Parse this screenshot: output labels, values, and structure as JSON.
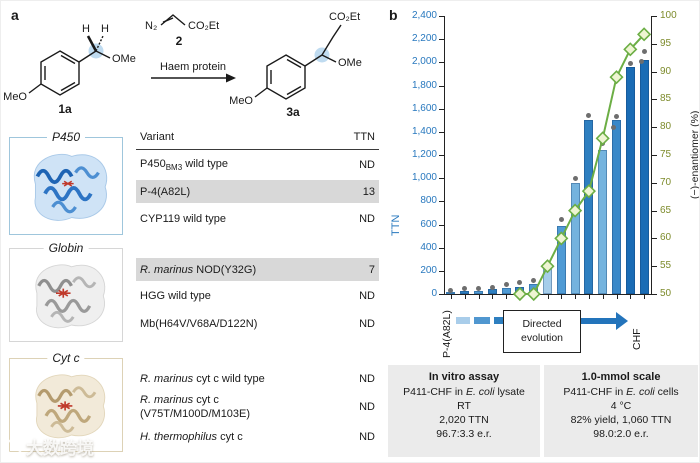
{
  "panel_a": {
    "label": "a",
    "scheme": {
      "mol1": {
        "id": "1a",
        "meo": "MeO",
        "ome": "OMe",
        "h1": "H",
        "h2": "H"
      },
      "reagent": {
        "n2": "N₂",
        "ester": "CO₂Et",
        "id": "2"
      },
      "arrow_label": "Haem protein",
      "mol3": {
        "id": "3a",
        "meo": "MeO",
        "ome": "OMe",
        "ester": "CO₂Et"
      }
    },
    "protein_cards": [
      {
        "label": "P450"
      },
      {
        "label": "Globin"
      },
      {
        "label": "Cyt c"
      }
    ],
    "table": {
      "headers": [
        "Variant",
        "TTN"
      ],
      "rows": [
        {
          "variant_html": "P450<sub>BM3</sub> wild type",
          "ttn": "ND",
          "highlight": false
        },
        {
          "variant_html": "P-4(A82L)",
          "ttn": "13",
          "highlight": true
        },
        {
          "variant_html": "CYP119 wild type",
          "ttn": "ND",
          "highlight": false
        },
        {
          "variant_html": "<i>R. marinus</i> NOD(Y32G)",
          "ttn": "7",
          "highlight": true
        },
        {
          "variant_html": "HGG wild type",
          "ttn": "ND",
          "highlight": false
        },
        {
          "variant_html": "Mb(H64V/V68A/D122N)",
          "ttn": "ND",
          "highlight": false
        },
        {
          "variant_html": "<i>R. marinus</i> cyt c wild type",
          "ttn": "ND",
          "highlight": false
        },
        {
          "variant_html": "<i>R. marinus</i> cyt c<br>(V75T/M100D/M103E)",
          "ttn": "ND",
          "highlight": false
        },
        {
          "variant_html": "<i>H. thermophilus</i> cyt c",
          "ttn": "ND",
          "highlight": false
        }
      ]
    }
  },
  "panel_b": {
    "label": "b",
    "x_start_label": "P-4(A82L)",
    "x_end_label": "CHF",
    "evo_line1": "Directed",
    "evo_line2": "evolution",
    "boxes": [
      {
        "title": "In vitro assay",
        "lines_html": [
          "P411-CHF in <i>E. coli</i> lysate",
          "RT",
          "2,020 TTN",
          "96.7:3.3 e.r."
        ]
      },
      {
        "title": "1.0-mmol scale",
        "lines_html": [
          "P411-CHF in <i>E. coli</i> cells",
          "4 °C",
          "82% yield, 1,060 TTN",
          "98.0:2.0 e.r."
        ]
      }
    ]
  },
  "chart_data": {
    "type": "bar",
    "title": "",
    "ylabel_left": "TTN",
    "ylabel_right": "(−)-enantiomer (%)",
    "y_left_axis": {
      "min": 0,
      "max": 2400,
      "step": 200
    },
    "y_right_axis": {
      "min": 50,
      "max": 100,
      "step": 5
    },
    "x_axis": {
      "start_label": "P-4(A82L)",
      "end_label": "CHF",
      "annotation": "Directed evolution"
    },
    "bars_ttn": [
      15,
      30,
      25,
      40,
      55,
      60,
      90,
      230,
      590,
      960,
      1500,
      1240,
      1500,
      1960,
      2020
    ],
    "bar_colors": [
      "#4f9bd5",
      "#2e7fc0",
      "#4f9bd5",
      "#2e7fc0",
      "#4f9bd5",
      "#2e7fc0",
      "#4f9bd5",
      "#a5cdea",
      "#4f9bd5",
      "#74b3de",
      "#2e7fc0",
      "#74b3de",
      "#3a88c8",
      "#1a6cb5",
      "#1a6cb5"
    ],
    "replicate_dots_ttn": [
      [
        30
      ],
      [
        45
      ],
      [
        45
      ],
      [
        60
      ],
      [
        80
      ],
      [
        95
      ],
      [
        115
      ],
      [
        255
      ],
      [
        640
      ],
      [
        1000
      ],
      [
        1540
      ],
      [
        1300
      ],
      [
        1530,
        1440
      ],
      [
        1990
      ],
      [
        2090,
        2010
      ]
    ],
    "line_enantiomer_pct": [
      null,
      null,
      null,
      null,
      null,
      50,
      50,
      55,
      60,
      65,
      68.5,
      78,
      89,
      94,
      96.7
    ],
    "line_color": "#6cae45",
    "marker": "diamond",
    "marker_fill": "#eef5d2",
    "dot_color": "#6e6e6e",
    "grid": false,
    "legend": "none"
  },
  "colors": {
    "left_axis_text": "#2878be",
    "right_axis_text": "#7d8b2b",
    "highlight_row": "#d8d8d8",
    "summary_box_bg": "#ebebeb",
    "evolution_arrow": "#2374bb"
  },
  "watermark": {
    "text": "大数跨境"
  }
}
